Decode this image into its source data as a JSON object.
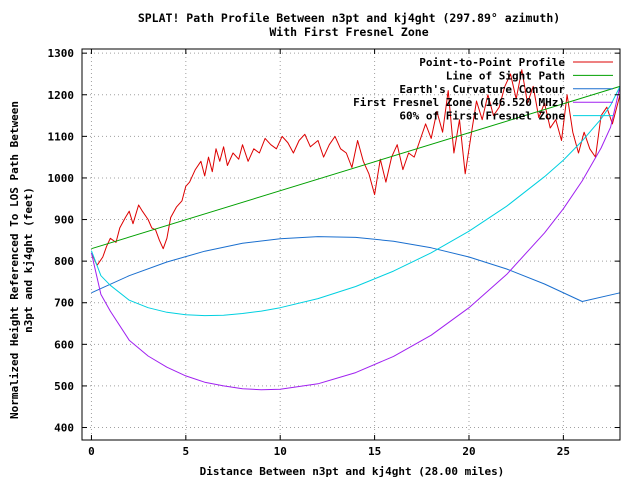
{
  "chart_data": {
    "type": "line",
    "title": "SPLAT! Path Profile Between n3pt and kj4ght (297.89° azimuth)",
    "subtitle": "With First Fresnel Zone",
    "xlabel": "Distance Between n3pt and kj4ght (28.00 miles)",
    "ylabel_line1": "Normalized Height Referenced To LOS Path Between",
    "ylabel_line2": "n3pt and kj4ght (feet)",
    "xlim": [
      -0.5,
      28
    ],
    "ylim": [
      370,
      1310
    ],
    "xticks": [
      0,
      5,
      10,
      15,
      20,
      25
    ],
    "yticks": [
      400,
      500,
      600,
      700,
      800,
      900,
      1000,
      1100,
      1200,
      1300
    ],
    "grid": true,
    "legend_position": "top-right",
    "colors": {
      "profile": "#dd0000",
      "los": "#00a000",
      "curvature": "#1a6fcf",
      "fresnel": "#a020f0",
      "fresnel60": "#00d0e0"
    },
    "series": [
      {
        "name": "Point-to-Point Profile",
        "x": [
          0,
          0.3,
          0.6,
          0.8,
          1.0,
          1.3,
          1.5,
          1.8,
          2.0,
          2.2,
          2.5,
          2.7,
          3.0,
          3.2,
          3.4,
          3.6,
          3.8,
          4.0,
          4.2,
          4.5,
          4.8,
          5.0,
          5.2,
          5.5,
          5.8,
          6.0,
          6.2,
          6.4,
          6.6,
          6.8,
          7.0,
          7.2,
          7.5,
          7.8,
          8.0,
          8.3,
          8.6,
          8.9,
          9.2,
          9.5,
          9.8,
          10.1,
          10.4,
          10.7,
          11.0,
          11.3,
          11.6,
          12.0,
          12.3,
          12.6,
          12.9,
          13.2,
          13.5,
          13.8,
          14.1,
          14.4,
          14.7,
          15.0,
          15.3,
          15.6,
          15.9,
          16.2,
          16.5,
          16.8,
          17.1,
          17.4,
          17.7,
          18.0,
          18.3,
          18.6,
          18.9,
          19.2,
          19.5,
          19.8,
          20.1,
          20.4,
          20.7,
          21.0,
          21.3,
          21.6,
          21.9,
          22.2,
          22.5,
          22.8,
          23.1,
          23.4,
          23.7,
          24.0,
          24.3,
          24.6,
          24.9,
          25.2,
          25.5,
          25.8,
          26.1,
          26.4,
          26.7,
          27.0,
          27.3,
          27.6,
          28.0
        ],
        "y": [
          820,
          790,
          810,
          835,
          855,
          845,
          880,
          905,
          920,
          890,
          935,
          920,
          900,
          880,
          875,
          850,
          830,
          855,
          905,
          930,
          945,
          980,
          990,
          1020,
          1040,
          1005,
          1050,
          1015,
          1070,
          1040,
          1075,
          1030,
          1060,
          1045,
          1080,
          1040,
          1070,
          1060,
          1095,
          1080,
          1070,
          1100,
          1085,
          1060,
          1090,
          1105,
          1075,
          1090,
          1050,
          1080,
          1100,
          1070,
          1060,
          1025,
          1090,
          1040,
          1010,
          960,
          1045,
          990,
          1050,
          1080,
          1020,
          1060,
          1050,
          1090,
          1130,
          1095,
          1160,
          1110,
          1210,
          1060,
          1140,
          1010,
          1100,
          1185,
          1140,
          1200,
          1150,
          1170,
          1220,
          1250,
          1190,
          1260,
          1180,
          1220,
          1145,
          1180,
          1120,
          1140,
          1090,
          1200,
          1110,
          1060,
          1110,
          1070,
          1050,
          1150,
          1170,
          1130,
          1200
        ]
      },
      {
        "name": "Line of Sight Path",
        "x": [
          0,
          28
        ],
        "y": [
          830,
          1220
        ]
      },
      {
        "name": "Earth's Curvature Contour",
        "x": [
          0,
          2,
          4,
          6,
          8,
          10,
          12,
          14,
          16,
          18,
          20,
          22,
          24,
          26,
          28
        ],
        "y": [
          724,
          765,
          798,
          824,
          843,
          854,
          859,
          857,
          848,
          832,
          810,
          781,
          745,
          703,
          724
        ]
      },
      {
        "name": "First Fresnel Zone (146.520 MHz)",
        "x": [
          0,
          0.5,
          1,
          2,
          3,
          4,
          5,
          6,
          7,
          8,
          9,
          10,
          12,
          14,
          16,
          18,
          20,
          22,
          24,
          25,
          26,
          27,
          27.5,
          28
        ],
        "y": [
          820,
          720,
          680,
          610,
          572,
          545,
          524,
          509,
          500,
          493,
          491,
          492,
          505,
          532,
          571,
          622,
          688,
          768,
          868,
          926,
          993,
          1072,
          1122,
          1220
        ]
      },
      {
        "name": "60% of First Fresnel Zone",
        "x": [
          0,
          0.5,
          1,
          2,
          3,
          4,
          5,
          6,
          7,
          8,
          9,
          10,
          12,
          14,
          16,
          18,
          20,
          22,
          24,
          25,
          26,
          27,
          27.5,
          28
        ],
        "y": [
          825,
          765,
          742,
          706,
          688,
          677,
          671,
          669,
          670,
          674,
          680,
          688,
          710,
          739,
          776,
          820,
          872,
          932,
          1003,
          1043,
          1089,
          1142,
          1175,
          1220
        ]
      }
    ]
  }
}
